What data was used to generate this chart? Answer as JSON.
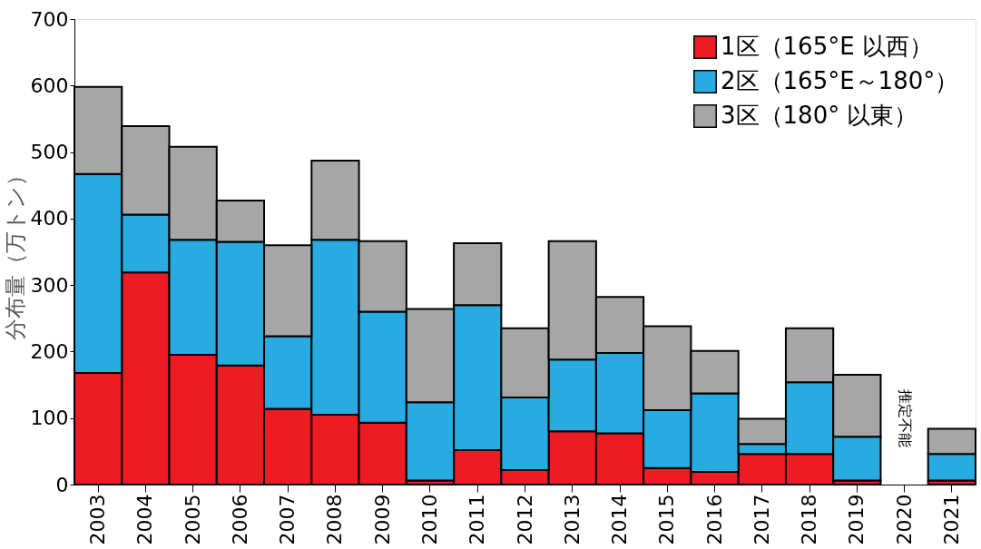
{
  "chart_data": {
    "type": "bar",
    "stacked": true,
    "ylabel": "分布量（万トン）",
    "categories": [
      "2003",
      "2004",
      "2005",
      "2006",
      "2007",
      "2008",
      "2009",
      "2010",
      "2011",
      "2012",
      "2013",
      "2014",
      "2015",
      "2016",
      "2017",
      "2018",
      "2019",
      "2020",
      "2021"
    ],
    "series": [
      {
        "name": "1区（165°E 以西）",
        "color": "#ed1c24",
        "values": [
          168,
          319,
          195,
          179,
          114,
          105,
          93,
          6,
          52,
          22,
          80,
          77,
          25,
          19,
          46,
          46,
          6,
          null,
          6
        ]
      },
      {
        "name": "2区（165°E～180°）",
        "color": "#29abe2",
        "values": [
          299,
          87,
          173,
          186,
          109,
          263,
          167,
          118,
          218,
          109,
          108,
          121,
          87,
          118,
          15,
          108,
          66,
          null,
          40
        ]
      },
      {
        "name": "3区（180° 以東）",
        "color": "#a6a6a6",
        "values": [
          131,
          133,
          140,
          62,
          137,
          119,
          106,
          140,
          93,
          104,
          178,
          84,
          126,
          64,
          38,
          81,
          93,
          null,
          38
        ]
      }
    ],
    "ylim": [
      0,
      700
    ],
    "yticks": [
      0,
      100,
      200,
      300,
      400,
      500,
      600,
      700
    ],
    "grid": false,
    "legend": "top right",
    "annotations": [
      "推定不能"
    ]
  }
}
